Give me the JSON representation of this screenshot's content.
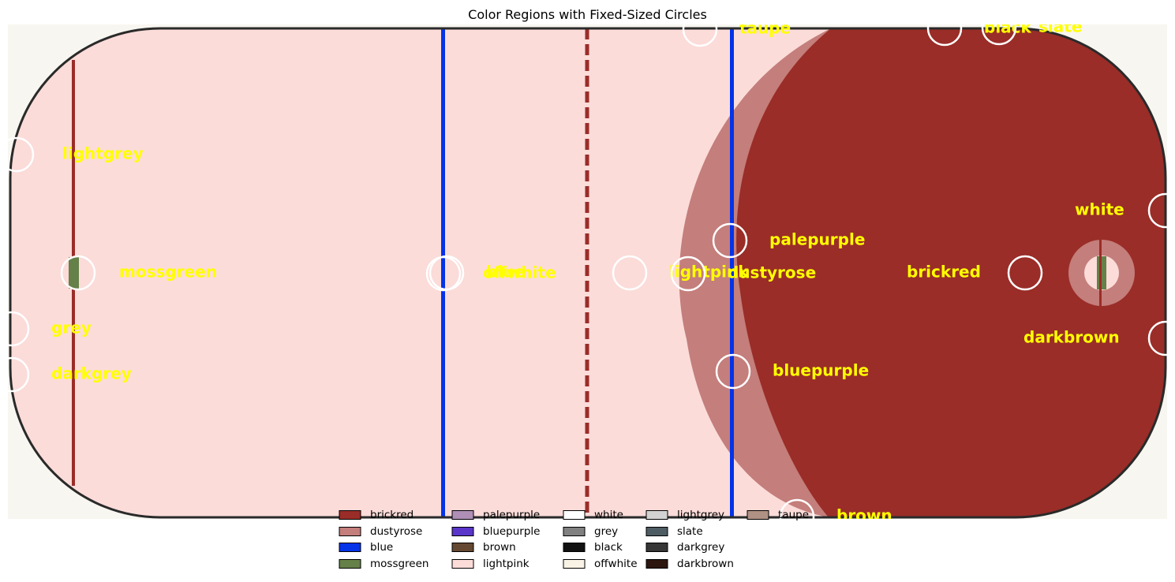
{
  "chart_data": {
    "type": "scatter",
    "title": "Color Regions with Fixed-Sized Circles",
    "xlim": [
      0,
      1469
    ],
    "ylim": [
      0,
      627
    ],
    "y_inverted": true,
    "grid": false,
    "legend_placement": "lower center",
    "annotations": [
      {
        "label": "lightgrey",
        "x": 11,
        "y": 165,
        "text_dx": 58,
        "text_dy": 0
      },
      {
        "label": "mossgreen",
        "x": 89,
        "y": 315,
        "text_dx": 52,
        "text_dy": 0
      },
      {
        "label": "grey",
        "x": 5,
        "y": 386,
        "text_dx": 50,
        "text_dy": 0
      },
      {
        "label": "darkgrey",
        "x": 5,
        "y": 444,
        "text_dx": 50,
        "text_dy": 0
      },
      {
        "label": "offwhite",
        "x": 552,
        "y": 316,
        "text_dx": 50,
        "text_dy": 0
      },
      {
        "label": "blue",
        "x": 556,
        "y": 315,
        "text_dx": 50,
        "text_dy": 0
      },
      {
        "label": "lightpink",
        "x": 788,
        "y": 315,
        "text_dx": 50,
        "text_dy": 0
      },
      {
        "label": "dustyrose",
        "x": 862,
        "y": 316,
        "text_dx": 50,
        "text_dy": 0
      },
      {
        "label": "taupe",
        "x": 877,
        "y": 6,
        "text_dx": 50,
        "text_dy": 0
      },
      {
        "label": "palepurple",
        "x": 915,
        "y": 274,
        "text_dx": 50,
        "text_dy": 0
      },
      {
        "label": "bluepurple",
        "x": 919,
        "y": 440,
        "text_dx": 50,
        "text_dy": 0
      },
      {
        "label": "brown",
        "x": 1000,
        "y": 624,
        "text_dx": 50,
        "text_dy": 0
      },
      {
        "label": "black",
        "x": 1187,
        "y": 5,
        "text_dx": 50,
        "text_dy": 0
      },
      {
        "label": "slate",
        "x": 1256,
        "y": 4,
        "text_dx": 50,
        "text_dy": 0
      },
      {
        "label": "brickred",
        "x": 1289,
        "y": 315,
        "text_dx": -150,
        "text_dy": 0
      },
      {
        "label": "white",
        "x": 1467,
        "y": 236,
        "text_dx": -115,
        "text_dy": 0
      },
      {
        "label": "darkbrown",
        "x": 1467,
        "y": 398,
        "text_dx": -180,
        "text_dy": 0
      }
    ],
    "legend": [
      {
        "label": "brickred",
        "color": "#9a2d28"
      },
      {
        "label": "dustyrose",
        "color": "#c47e7b"
      },
      {
        "label": "blue",
        "color": "#0433e8"
      },
      {
        "label": "mossgreen",
        "color": "#658048"
      },
      {
        "label": "palepurple",
        "color": "#b08fb7"
      },
      {
        "label": "bluepurple",
        "color": "#5a35c9"
      },
      {
        "label": "brown",
        "color": "#654832"
      },
      {
        "label": "lightpink",
        "color": "#fbdcd9"
      },
      {
        "label": "white",
        "color": "#ffffff"
      },
      {
        "label": "grey",
        "color": "#808080"
      },
      {
        "label": "black",
        "color": "#111111"
      },
      {
        "label": "offwhite",
        "color": "#f8f3e4"
      },
      {
        "label": "lightgrey",
        "color": "#d2d2d2"
      },
      {
        "label": "slate",
        "color": "#4e5d63"
      },
      {
        "label": "darkgrey",
        "color": "#363636"
      },
      {
        "label": "darkbrown",
        "color": "#2d160d"
      },
      {
        "label": "taupe",
        "color": "#b09284"
      }
    ]
  },
  "colors": {
    "rink_ice": "#fbdcd9",
    "rink_background": "#f8f6f0",
    "rink_board": "#2a2a2a",
    "zone_brickred": "#9a2d28",
    "zone_dustyrose": "#c47e7b",
    "line_blue": "#0433e8",
    "line_red": "#9a2d28",
    "goal_green": "#658048",
    "circle_stroke": "#ffffff",
    "label_yellow": "#ffff00"
  }
}
